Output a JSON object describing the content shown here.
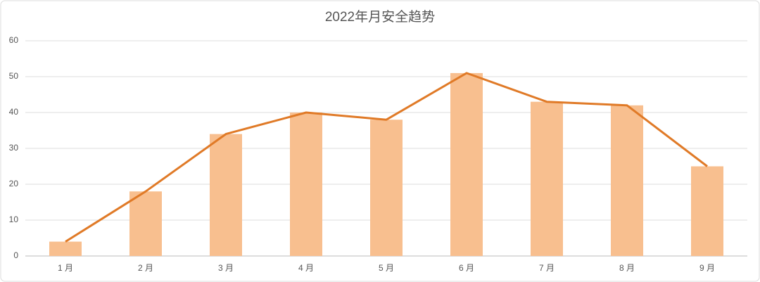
{
  "chart_data": {
    "type": "bar",
    "title": "2022年月安全趋势",
    "categories": [
      "1 月",
      "2 月",
      "3 月",
      "4 月",
      "5 月",
      "6 月",
      "7 月",
      "8 月",
      "9 月"
    ],
    "series": [
      {
        "type": "bar",
        "color": "#f8bf8f",
        "values": [
          4,
          18,
          34,
          40,
          38,
          51,
          43,
          42,
          25
        ]
      },
      {
        "type": "line",
        "color": "#e07a27",
        "values": [
          4,
          18,
          34,
          40,
          38,
          51,
          43,
          42,
          25
        ]
      }
    ],
    "ylim": [
      0,
      60
    ],
    "yticks": [
      0,
      10,
      20,
      30,
      40,
      50,
      60
    ],
    "grid": true
  }
}
